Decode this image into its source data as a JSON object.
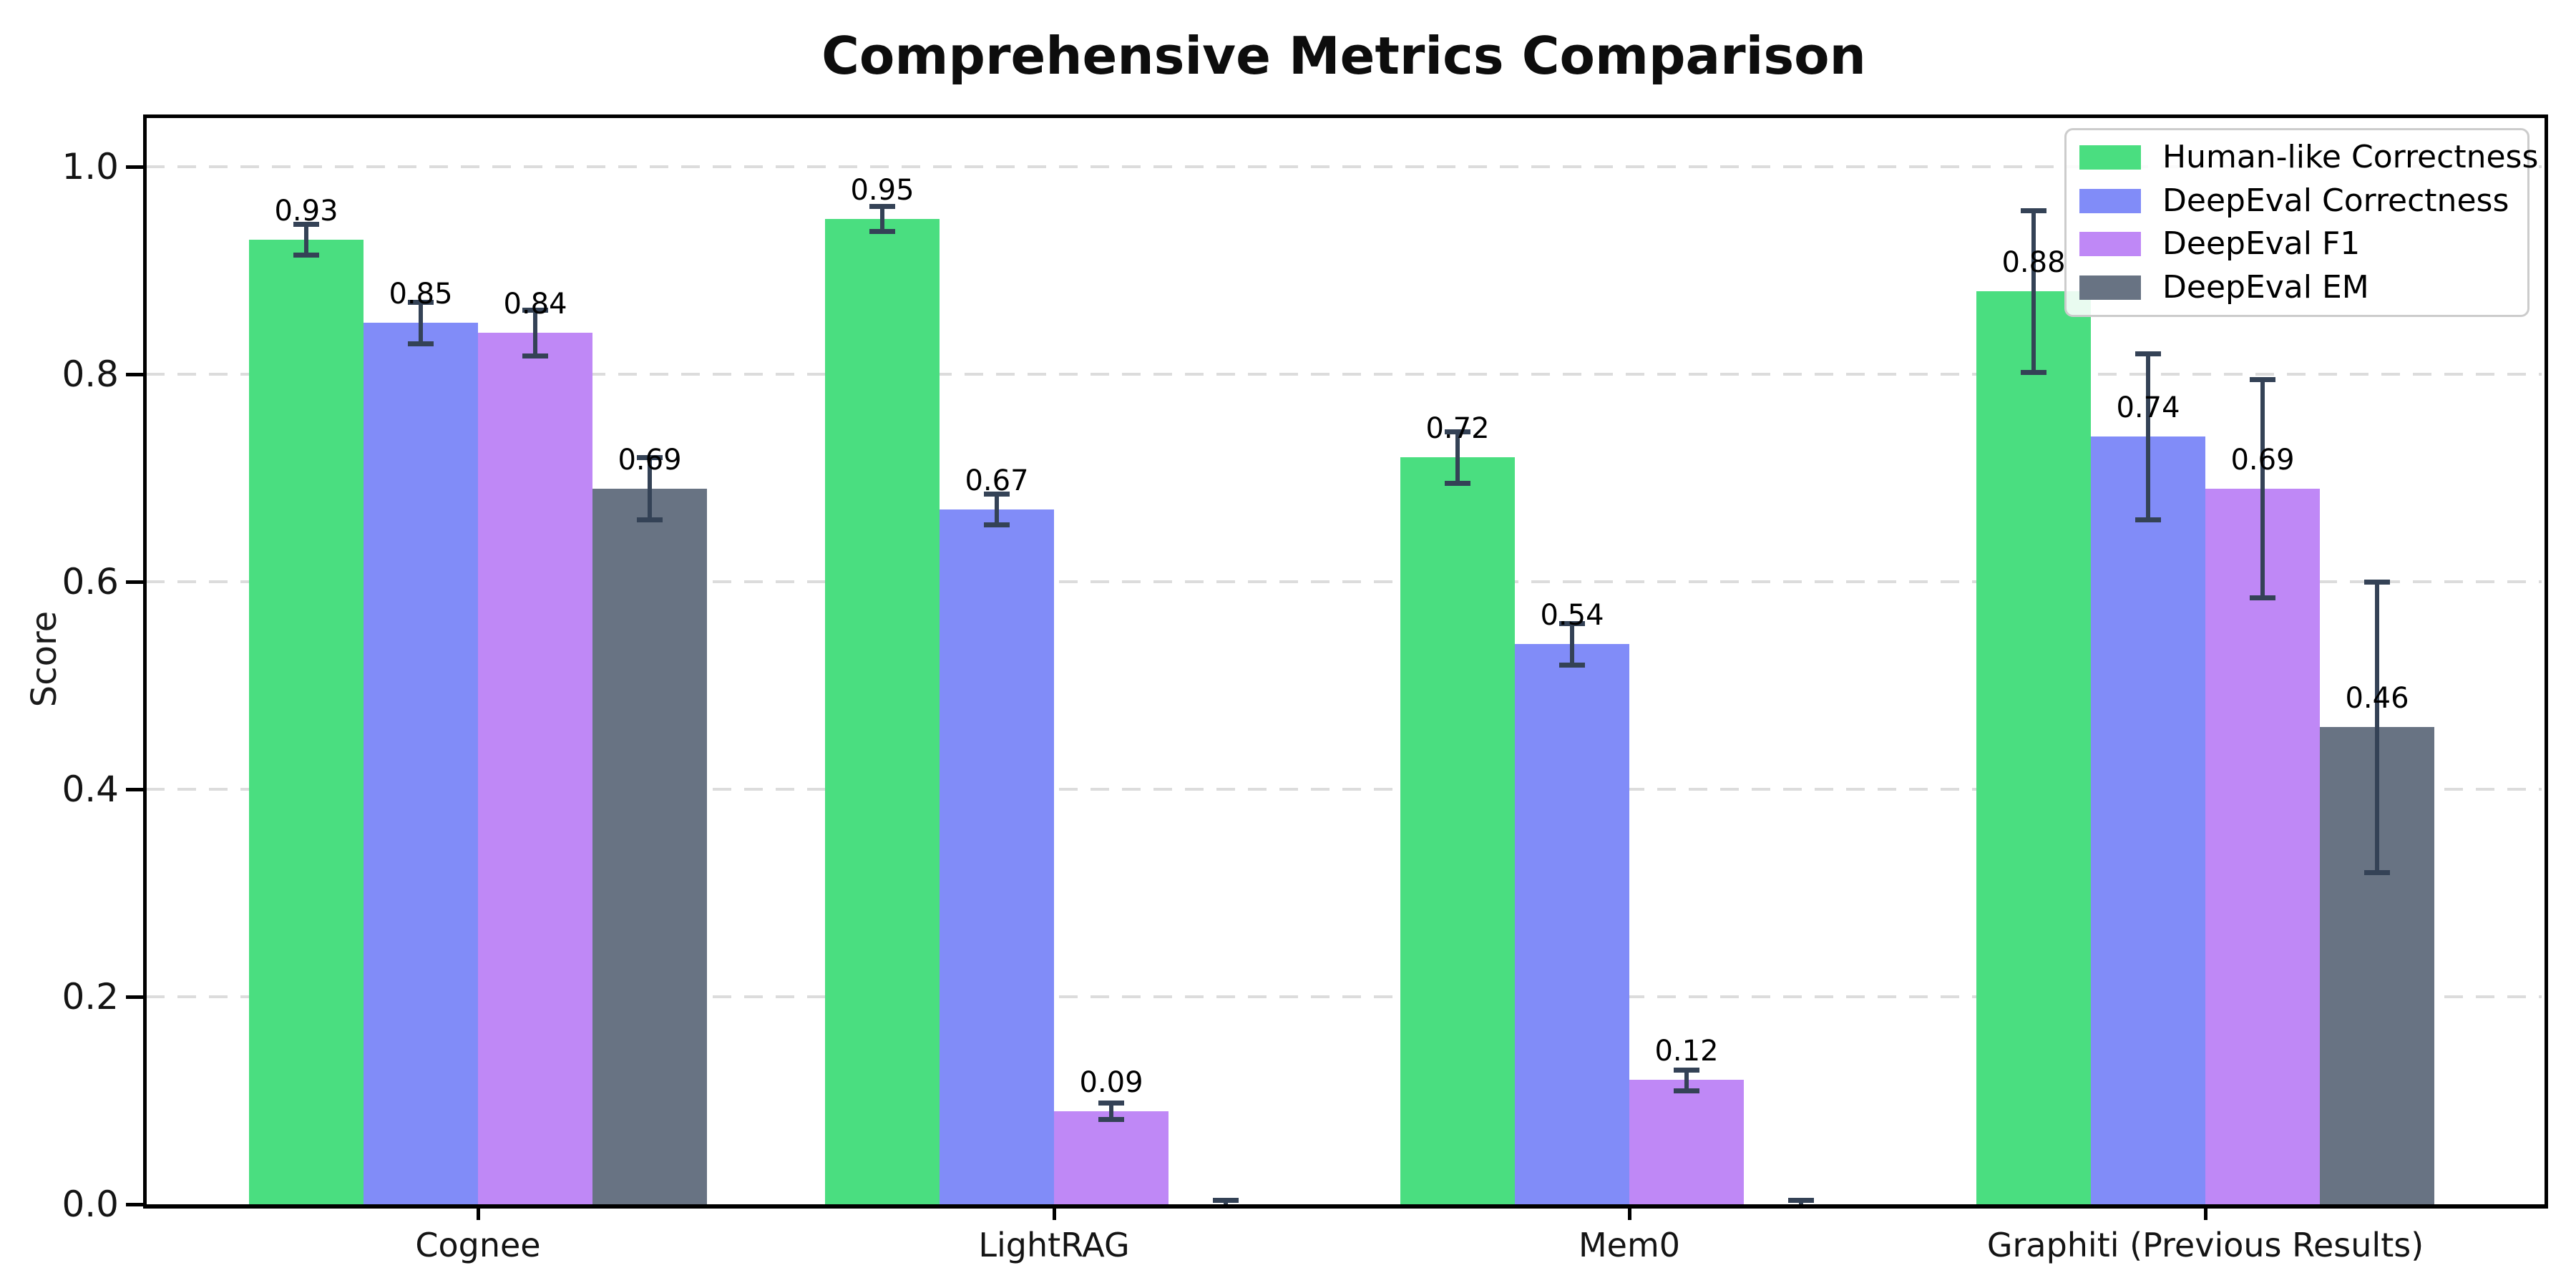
{
  "chart_data": {
    "type": "bar",
    "title": "Comprehensive Metrics Comparison",
    "xlabel": "",
    "ylabel": "Score",
    "categories": [
      "Cognee",
      "LightRAG",
      "Mem0",
      "Graphiti (Previous Results)"
    ],
    "series": [
      {
        "name": "Human-like Correctness",
        "color": "#4ade80",
        "values": [
          0.93,
          0.95,
          0.72,
          0.88
        ],
        "errors": [
          0.015,
          0.012,
          0.025,
          0.078
        ],
        "value_labels": [
          "0.93",
          "0.95",
          "0.72",
          "0.88"
        ]
      },
      {
        "name": "DeepEval Correctness",
        "color": "#818cf8",
        "values": [
          0.85,
          0.67,
          0.54,
          0.74
        ],
        "errors": [
          0.02,
          0.015,
          0.02,
          0.08
        ],
        "value_labels": [
          "0.85",
          "0.67",
          "0.54",
          "0.74"
        ]
      },
      {
        "name": "DeepEval F1",
        "color": "#bf88f6",
        "values": [
          0.84,
          0.09,
          0.12,
          0.69
        ],
        "errors": [
          0.022,
          0.008,
          0.01,
          0.105
        ],
        "value_labels": [
          "0.84",
          "0.09",
          "0.12",
          "0.69"
        ]
      },
      {
        "name": "DeepEval EM",
        "color": "#687383",
        "values": [
          0.69,
          0.0,
          0.0,
          0.46
        ],
        "errors": [
          0.03,
          0.004,
          0.004,
          0.14
        ],
        "value_labels": [
          "0.69",
          "",
          "",
          "0.46"
        ]
      }
    ],
    "yticks": [
      "0.0",
      "0.2",
      "0.4",
      "0.6",
      "0.8",
      "1.0"
    ],
    "ylim": [
      0,
      1.05
    ],
    "grid": "horizontal-dashed",
    "legend_position": "upper-right",
    "colors": {
      "grid": "#dcdcdc",
      "error_bar": "#344256",
      "spine": "#000000",
      "legend_border": "#cccccc",
      "legend_background": "rgba(255,255,255,0.88)"
    }
  }
}
